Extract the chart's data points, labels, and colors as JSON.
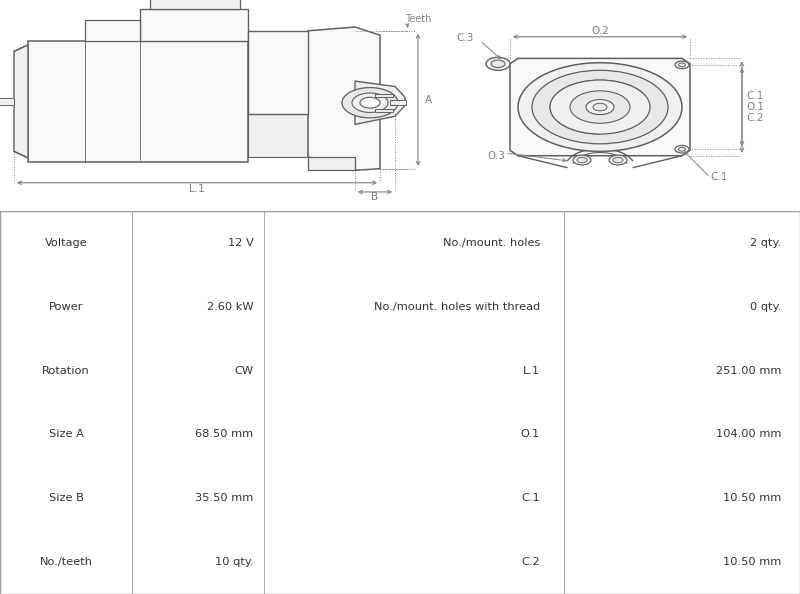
{
  "bg_color": "#ffffff",
  "line_color": "#606060",
  "dim_color": "#808080",
  "fill_light": "#f8f8f8",
  "fill_mid": "#f0f0f0",
  "fill_dark": "#e8e8e8",
  "table": {
    "col_bg_label": "#d5d5d5",
    "col_bg_value": "#e8e8e8",
    "border_color": "#999999",
    "text_color": "#333333",
    "rows": [
      [
        "Voltage",
        "12 V",
        "No./mount. holes",
        "2 qty."
      ],
      [
        "Power",
        "2.60 kW",
        "No./mount. holes with thread",
        "0 qty."
      ],
      [
        "Rotation",
        "CW",
        "L.1",
        "251.00 mm"
      ],
      [
        "Size A",
        "68.50 mm",
        "O.1",
        "104.00 mm"
      ],
      [
        "Size B",
        "35.50 mm",
        "C.1",
        "10.50 mm"
      ],
      [
        "No./teeth",
        "10 qty.",
        "C.2",
        "10.50 mm"
      ]
    ]
  }
}
